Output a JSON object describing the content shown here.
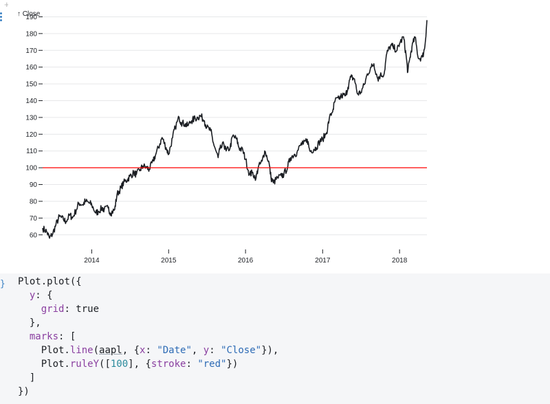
{
  "notebook": {
    "gutter_icons": {
      "add": "plus-icon",
      "drag": "drag-handle-icon"
    },
    "brace_icon": "braces-icon"
  },
  "chart_data": {
    "type": "line",
    "ylabel": "↑ Close",
    "xlabel": "",
    "yticks": [
      60,
      70,
      80,
      90,
      100,
      110,
      120,
      130,
      140,
      150,
      160,
      170,
      180,
      190
    ],
    "xticks": [
      "2014",
      "2015",
      "2016",
      "2017",
      "2018"
    ],
    "xlim": [
      "2013-05-13",
      "2018-05-11"
    ],
    "ylim": [
      55,
      191
    ],
    "grid": true,
    "line_color": "#1b1e23",
    "rule_y": 100,
    "rule_color": "#ff0000",
    "series": [
      {
        "x": [
          "2013-05-13",
          "2013-06-01",
          "2013-06-15",
          "2013-07-01",
          "2013-07-15",
          "2013-08-01",
          "2013-08-20",
          "2013-09-01",
          "2013-09-20",
          "2013-10-01",
          "2013-10-20",
          "2013-11-01",
          "2013-11-20",
          "2013-12-01",
          "2013-12-20",
          "2014-01-01",
          "2014-01-20",
          "2014-02-01",
          "2014-02-20",
          "2014-03-01",
          "2014-03-20",
          "2014-04-01",
          "2014-04-20",
          "2014-05-01",
          "2014-05-20",
          "2014-06-01",
          "2014-06-20",
          "2014-07-01",
          "2014-07-20",
          "2014-08-01",
          "2014-08-20",
          "2014-09-01",
          "2014-09-20",
          "2014-10-01",
          "2014-10-20",
          "2014-11-01",
          "2014-11-20",
          "2014-12-01",
          "2014-12-20",
          "2015-01-01",
          "2015-01-20",
          "2015-02-01",
          "2015-02-20",
          "2015-03-01",
          "2015-03-20",
          "2015-04-01",
          "2015-04-20",
          "2015-05-01",
          "2015-05-20",
          "2015-06-01",
          "2015-06-20",
          "2015-07-01",
          "2015-07-20",
          "2015-08-01",
          "2015-08-24",
          "2015-09-01",
          "2015-09-20",
          "2015-10-01",
          "2015-10-20",
          "2015-11-01",
          "2015-11-20",
          "2015-12-01",
          "2015-12-20",
          "2016-01-01",
          "2016-01-20",
          "2016-02-01",
          "2016-02-20",
          "2016-03-01",
          "2016-03-20",
          "2016-04-01",
          "2016-04-20",
          "2016-05-01",
          "2016-05-12",
          "2016-06-01",
          "2016-06-20",
          "2016-07-01",
          "2016-07-20",
          "2016-08-01",
          "2016-08-20",
          "2016-09-01",
          "2016-09-20",
          "2016-10-01",
          "2016-10-20",
          "2016-11-01",
          "2016-11-20",
          "2016-12-01",
          "2016-12-20",
          "2017-01-01",
          "2017-01-20",
          "2017-02-01",
          "2017-02-20",
          "2017-03-01",
          "2017-03-20",
          "2017-04-01",
          "2017-04-20",
          "2017-05-01",
          "2017-05-15",
          "2017-06-01",
          "2017-06-15",
          "2017-07-01",
          "2017-07-20",
          "2017-08-01",
          "2017-08-20",
          "2017-09-01",
          "2017-09-20",
          "2017-10-01",
          "2017-10-20",
          "2017-11-01",
          "2017-11-20",
          "2017-12-01",
          "2017-12-20",
          "2018-01-01",
          "2018-01-20",
          "2018-02-01",
          "2018-02-09",
          "2018-02-20",
          "2018-03-01",
          "2018-03-15",
          "2018-04-01",
          "2018-04-20",
          "2018-05-01",
          "2018-05-11"
        ],
        "values": [
          64,
          62,
          58,
          61,
          66,
          71,
          69,
          68,
          72,
          70,
          75,
          79,
          78,
          80,
          79,
          78,
          73,
          74,
          76,
          75,
          76,
          73,
          75,
          84,
          88,
          91,
          93,
          95,
          97,
          96,
          99,
          101,
          100,
          99,
          104,
          108,
          114,
          118,
          112,
          108,
          118,
          124,
          130,
          127,
          126,
          125,
          128,
          129,
          130,
          131,
          128,
          124,
          122,
          115,
          106,
          111,
          114,
          110,
          112,
          119,
          117,
          112,
          110,
          105,
          96,
          97,
          94,
          100,
          104,
          110,
          104,
          94,
          91,
          94,
          95,
          96,
          101,
          106,
          108,
          109,
          114,
          114,
          117,
          110,
          111,
          112,
          116,
          117,
          121,
          129,
          135,
          140,
          141,
          143,
          143,
          148,
          154,
          153,
          144,
          145,
          150,
          156,
          160,
          162,
          153,
          155,
          156,
          168,
          173,
          172,
          170,
          174,
          178,
          167,
          157,
          166,
          172,
          178,
          165,
          166,
          172,
          188
        ]
      }
    ]
  },
  "code": {
    "lines": [
      [
        {
          "t": "Plot",
          "c": "kw"
        },
        {
          "t": "."
        },
        {
          "t": "plot",
          "c": "kw"
        },
        {
          "t": "({"
        }
      ],
      [
        {
          "t": "  "
        },
        {
          "t": "y",
          "c": "prop"
        },
        {
          "t": ": {"
        }
      ],
      [
        {
          "t": "    "
        },
        {
          "t": "grid",
          "c": "prop"
        },
        {
          "t": ": true"
        }
      ],
      [
        {
          "t": "  },"
        }
      ],
      [
        {
          "t": "  "
        },
        {
          "t": "marks",
          "c": "prop"
        },
        {
          "t": ": ["
        }
      ],
      [
        {
          "t": "    Plot."
        },
        {
          "t": "line",
          "c": "prop"
        },
        {
          "t": "("
        },
        {
          "t": "aapl",
          "c": "var"
        },
        {
          "t": ", {"
        },
        {
          "t": "x",
          "c": "prop"
        },
        {
          "t": ": "
        },
        {
          "t": "\"Date\"",
          "c": "str"
        },
        {
          "t": ", "
        },
        {
          "t": "y",
          "c": "prop"
        },
        {
          "t": ": "
        },
        {
          "t": "\"Close\"",
          "c": "str"
        },
        {
          "t": "}),"
        }
      ],
      [
        {
          "t": "    Plot."
        },
        {
          "t": "ruleY",
          "c": "prop"
        },
        {
          "t": "(["
        },
        {
          "t": "100",
          "c": "num"
        },
        {
          "t": "], {"
        },
        {
          "t": "stroke",
          "c": "prop"
        },
        {
          "t": ": "
        },
        {
          "t": "\"red\"",
          "c": "str"
        },
        {
          "t": "})"
        }
      ],
      [
        {
          "t": "  ]"
        }
      ],
      [
        {
          "t": "})"
        }
      ]
    ]
  }
}
